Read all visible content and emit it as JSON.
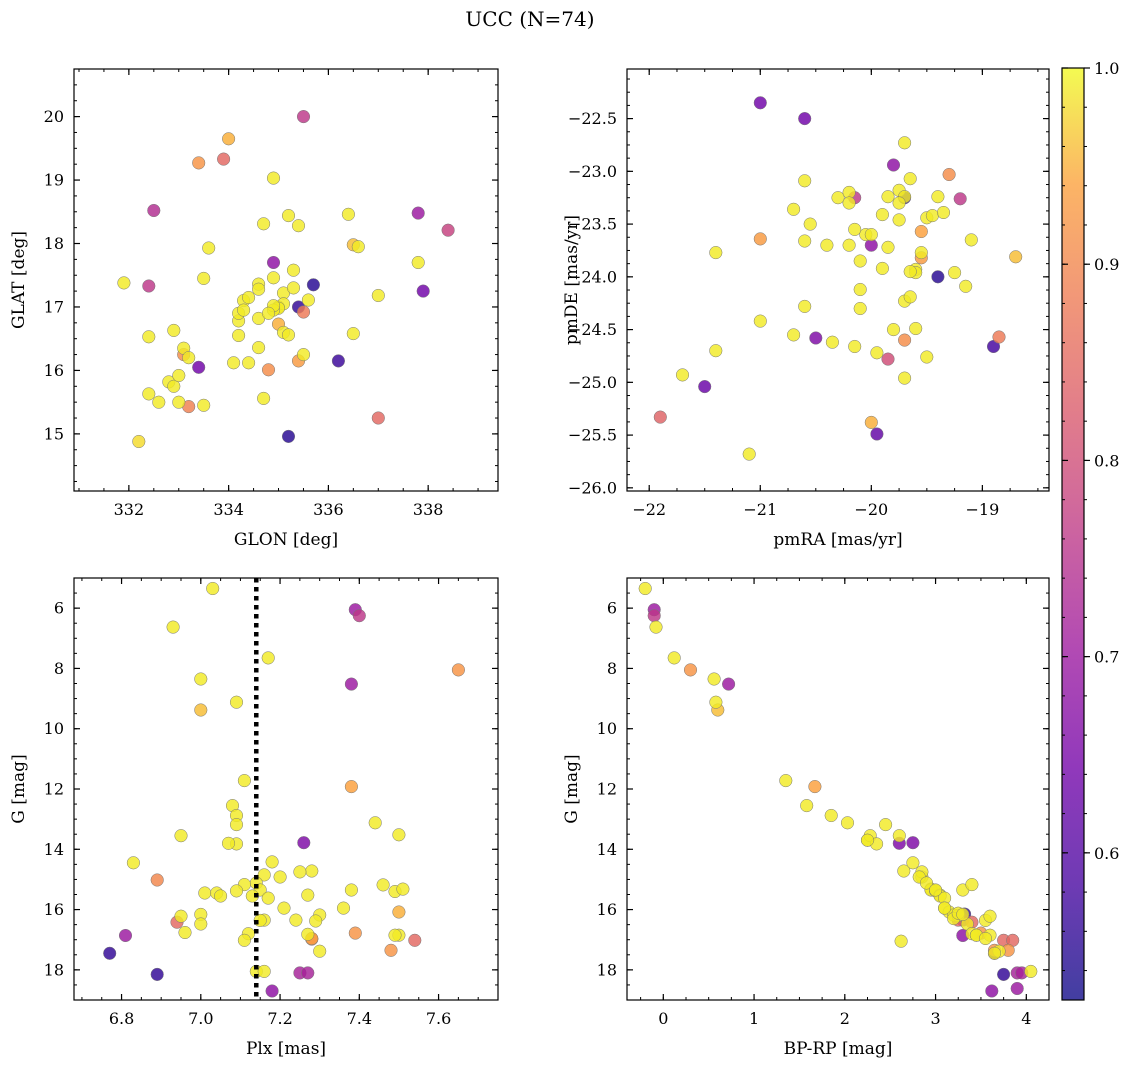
{
  "suptitle": "UCC (N=74)",
  "colorbar": {
    "min": 0.525,
    "max": 1.0,
    "cmap": "plasma",
    "ticks": [
      0.6,
      0.7,
      0.8,
      0.9,
      1.0
    ],
    "tick_labels": [
      "0.6",
      "0.7",
      "0.8",
      "0.9",
      "1.0"
    ]
  },
  "chart_data": [
    {
      "type": "scatter",
      "id": "glon_glat",
      "xlabel": "GLON [deg]",
      "ylabel": "GLAT [deg]",
      "xlim": [
        330.9,
        339.4
      ],
      "ylim": [
        14.1,
        20.75
      ],
      "xticks": [
        332,
        334,
        336,
        338
      ],
      "xtick_labels": [
        "332",
        "334",
        "336",
        "338"
      ],
      "yticks": [
        15,
        16,
        17,
        18,
        19,
        20
      ],
      "ytick_labels": [
        "15",
        "16",
        "17",
        "18",
        "19",
        "20"
      ],
      "x": [
        331.9,
        332.5,
        332.4,
        332.4,
        332.4,
        332.6,
        332.2,
        332.9,
        333.1,
        333.1,
        332.8,
        332.9,
        333.0,
        333.2,
        333.0,
        333.4,
        333.5,
        333.4,
        333.6,
        333.9,
        334.0,
        334.1,
        334.2,
        334.3,
        334.2,
        334.2,
        334.4,
        334.4,
        334.6,
        334.6,
        334.6,
        334.7,
        334.8,
        334.7,
        334.9,
        334.9,
        334.9,
        335.0,
        335.1,
        335.1,
        335.1,
        335.2,
        335.2,
        335.0,
        335.3,
        335.3,
        335.4,
        335.4,
        335.5,
        335.5,
        335.5,
        335.7,
        335.6,
        335.2,
        335.0,
        334.9,
        334.9,
        334.8,
        334.6,
        336.2,
        336.4,
        336.5,
        336.5,
        336.6,
        337.0,
        337.0,
        337.8,
        337.8,
        337.9,
        338.4,
        335.4,
        334.3,
        333.5,
        333.2
      ],
      "y": [
        17.38,
        18.52,
        17.33,
        16.53,
        15.63,
        15.5,
        14.88,
        16.63,
        16.35,
        16.25,
        15.82,
        15.75,
        15.5,
        15.43,
        15.92,
        16.05,
        15.45,
        19.27,
        17.93,
        19.33,
        19.65,
        16.12,
        16.55,
        17.1,
        16.78,
        16.9,
        17.15,
        16.12,
        17.36,
        17.28,
        16.82,
        18.31,
        16.01,
        15.56,
        19.03,
        17.7,
        17.46,
        17.0,
        17.22,
        17.05,
        16.6,
        16.56,
        18.44,
        16.73,
        17.58,
        17.3,
        18.28,
        16.15,
        16.25,
        20.0,
        16.92,
        17.35,
        17.11,
        14.96,
        16.98,
        16.95,
        17.02,
        16.9,
        16.36,
        16.15,
        18.46,
        17.98,
        16.58,
        17.95,
        17.18,
        15.25,
        18.48,
        17.7,
        17.25,
        18.21,
        17.0,
        16.95,
        17.45,
        16.2
      ],
      "prob": [
        0.99,
        0.74,
        0.76,
        0.99,
        0.99,
        0.99,
        0.98,
        0.99,
        0.99,
        0.91,
        0.99,
        0.99,
        0.99,
        0.89,
        0.99,
        0.64,
        0.99,
        0.92,
        0.99,
        0.85,
        0.95,
        0.99,
        0.99,
        0.99,
        0.99,
        0.99,
        0.99,
        0.99,
        0.99,
        0.99,
        0.99,
        0.99,
        0.91,
        0.99,
        0.99,
        0.68,
        0.99,
        0.99,
        0.99,
        0.99,
        0.99,
        0.99,
        0.99,
        0.95,
        0.99,
        0.99,
        0.99,
        0.93,
        0.99,
        0.76,
        0.88,
        0.55,
        0.99,
        0.55,
        0.99,
        0.99,
        0.99,
        0.99,
        0.99,
        0.57,
        0.99,
        0.96,
        0.99,
        0.99,
        0.99,
        0.85,
        0.7,
        0.99,
        0.64,
        0.78,
        0.56,
        0.99,
        0.99,
        0.99
      ]
    },
    {
      "type": "scatter",
      "id": "pm",
      "xlabel": "pmRA [mas/yr]",
      "ylabel": "pmDE [mas/yr]",
      "xlim": [
        -22.2,
        -18.4
      ],
      "ylim": [
        -26.03,
        -22.03
      ],
      "xticks": [
        -22,
        -21,
        -20,
        -19
      ],
      "xtick_labels": [
        "−22",
        "−21",
        "−20",
        "−19"
      ],
      "yticks": [
        -26.0,
        -25.5,
        -25.0,
        -24.5,
        -24.0,
        -23.5,
        -23.0,
        -22.5
      ],
      "ytick_labels": [
        "−26.0",
        "−25.5",
        "−25.0",
        "−24.5",
        "−24.0",
        "−23.5",
        "−23.0",
        "−22.5"
      ],
      "x": [
        -21.0,
        -20.6,
        -21.9,
        -21.7,
        -21.5,
        -21.4,
        -21.4,
        -21.1,
        -21.0,
        -20.7,
        -20.6,
        -20.7,
        -20.6,
        -20.6,
        -20.55,
        -20.5,
        -20.4,
        -20.35,
        -20.3,
        -20.2,
        -20.2,
        -20.15,
        -20.15,
        -20.1,
        -20.1,
        -20.1,
        -20.05,
        -20.0,
        -20.0,
        -19.95,
        -19.9,
        -19.9,
        -19.85,
        -19.85,
        -19.8,
        -19.8,
        -19.75,
        -19.75,
        -19.7,
        -19.7,
        -19.7,
        -19.7,
        -19.7,
        -19.65,
        -19.65,
        -19.6,
        -19.6,
        -19.6,
        -19.55,
        -19.55,
        -19.55,
        -19.5,
        -19.5,
        -19.45,
        -19.4,
        -19.4,
        -19.35,
        -19.3,
        -19.25,
        -19.2,
        -19.15,
        -19.1,
        -18.9,
        -18.85,
        -18.7,
        -19.7,
        -21.0,
        -20.15,
        -19.65,
        -19.85,
        -20.0,
        -19.95,
        -19.75,
        -20.2
      ],
      "y": [
        -22.35,
        -22.5,
        -25.33,
        -24.93,
        -25.04,
        -24.7,
        -23.77,
        -25.68,
        -24.42,
        -23.36,
        -23.09,
        -24.55,
        -24.28,
        -23.66,
        -23.5,
        -24.58,
        -23.7,
        -24.62,
        -23.25,
        -23.2,
        -23.7,
        -24.66,
        -23.25,
        -23.85,
        -24.12,
        -24.3,
        -23.6,
        -25.38,
        -23.7,
        -25.49,
        -23.92,
        -23.41,
        -23.24,
        -24.78,
        -24.5,
        -22.94,
        -23.46,
        -23.18,
        -22.73,
        -24.23,
        -24.6,
        -24.96,
        -23.24,
        -24.19,
        -23.07,
        -23.93,
        -23.96,
        -24.49,
        -23.57,
        -23.82,
        -23.77,
        -23.44,
        -24.76,
        -23.42,
        -23.24,
        -24.0,
        -23.39,
        -23.03,
        -23.96,
        -23.26,
        -24.09,
        -23.65,
        -24.66,
        -24.57,
        -23.81,
        -23.25,
        -23.64,
        -23.55,
        -23.95,
        -23.72,
        -23.6,
        -24.72,
        -23.3,
        -23.3
      ],
      "prob": [
        0.64,
        0.64,
        0.84,
        0.99,
        0.63,
        0.99,
        0.99,
        0.99,
        0.99,
        0.99,
        0.99,
        0.99,
        0.99,
        0.99,
        0.99,
        0.66,
        0.99,
        0.99,
        0.99,
        0.99,
        0.99,
        0.99,
        0.76,
        0.99,
        0.99,
        0.99,
        0.99,
        0.95,
        0.68,
        0.62,
        0.99,
        0.99,
        0.99,
        0.8,
        0.99,
        0.68,
        0.99,
        0.99,
        0.99,
        0.99,
        0.91,
        0.99,
        0.99,
        0.99,
        0.99,
        0.99,
        0.99,
        0.99,
        0.94,
        0.93,
        0.99,
        0.99,
        0.99,
        0.99,
        0.99,
        0.55,
        0.99,
        0.91,
        0.99,
        0.76,
        0.99,
        0.99,
        0.58,
        0.88,
        0.96,
        0.56,
        0.93,
        0.99,
        0.99,
        0.99,
        0.99,
        0.99,
        0.99,
        0.99
      ]
    },
    {
      "type": "scatter",
      "id": "plx_g",
      "xlabel": "Plx [mas]",
      "ylabel": "G [mag]",
      "xlim": [
        6.68,
        7.75
      ],
      "ylim": [
        19.0,
        5.0
      ],
      "y_inverted": true,
      "vline_x": 7.14,
      "xticks": [
        6.8,
        7.0,
        7.2,
        7.4,
        7.6
      ],
      "xtick_labels": [
        "6.8",
        "7.0",
        "7.2",
        "7.4",
        "7.6"
      ],
      "yticks": [
        6,
        8,
        10,
        12,
        14,
        16,
        18
      ],
      "ytick_labels": [
        "6",
        "8",
        "10",
        "12",
        "14",
        "16",
        "18"
      ],
      "x": [
        7.03,
        6.93,
        7.17,
        7.0,
        7.0,
        7.09,
        7.11,
        7.08,
        7.09,
        7.09,
        7.09,
        6.95,
        7.26,
        7.38,
        7.44,
        7.5,
        7.07,
        6.83,
        7.18,
        7.2,
        7.16,
        7.14,
        7.11,
        7.15,
        7.13,
        7.17,
        7.16,
        7.15,
        7.21,
        7.24,
        7.27,
        7.28,
        7.28,
        7.25,
        7.3,
        7.3,
        7.25,
        7.27,
        7.29,
        7.39,
        7.36,
        7.38,
        7.46,
        7.49,
        7.5,
        7.51,
        7.5,
        7.48,
        7.49,
        7.54,
        7.65,
        7.39,
        7.4,
        7.38,
        7.27,
        7.28,
        6.77,
        6.81,
        6.89,
        6.89,
        6.94,
        6.95,
        6.96,
        7.0,
        7.0,
        7.01,
        7.04,
        7.05,
        7.09,
        7.12,
        7.11,
        7.14,
        7.18,
        7.16
      ],
      "y": [
        5.35,
        6.63,
        7.65,
        8.35,
        9.38,
        9.12,
        11.72,
        12.55,
        12.88,
        13.18,
        13.82,
        13.55,
        13.78,
        11.92,
        13.12,
        13.52,
        13.8,
        14.45,
        14.42,
        14.92,
        14.85,
        15.12,
        15.17,
        15.35,
        15.55,
        15.62,
        16.35,
        16.36,
        15.95,
        16.35,
        15.52,
        14.72,
        16.96,
        14.75,
        16.18,
        17.38,
        18.1,
        16.82,
        16.38,
        16.78,
        15.95,
        15.35,
        15.18,
        15.4,
        16.85,
        15.32,
        16.08,
        17.35,
        16.85,
        17.02,
        8.05,
        6.05,
        6.25,
        8.52,
        18.1,
        16.98,
        17.45,
        16.86,
        18.15,
        15.02,
        16.42,
        16.22,
        16.76,
        16.16,
        16.48,
        15.45,
        15.45,
        15.55,
        15.38,
        16.8,
        17.02,
        18.05,
        18.7,
        18.05
      ],
      "prob": [
        0.99,
        0.99,
        0.99,
        0.99,
        0.96,
        0.99,
        0.99,
        0.99,
        0.99,
        0.99,
        0.99,
        0.99,
        0.66,
        0.94,
        0.99,
        0.99,
        0.99,
        0.99,
        0.99,
        0.99,
        0.99,
        0.99,
        0.99,
        0.99,
        0.99,
        0.99,
        0.99,
        0.99,
        0.99,
        0.99,
        0.99,
        0.99,
        0.93,
        0.99,
        0.99,
        0.99,
        0.72,
        0.99,
        0.99,
        0.92,
        0.99,
        0.99,
        0.99,
        0.99,
        0.99,
        0.99,
        0.95,
        0.92,
        0.99,
        0.85,
        0.92,
        0.7,
        0.76,
        0.7,
        0.72,
        0.92,
        0.56,
        0.7,
        0.56,
        0.9,
        0.85,
        0.99,
        0.99,
        0.99,
        0.99,
        0.99,
        0.99,
        0.99,
        0.99,
        0.99,
        0.99,
        0.99,
        0.68,
        0.99
      ]
    },
    {
      "type": "scatter",
      "id": "cmd",
      "xlabel": "BP-RP [mag]",
      "ylabel": "G [mag]",
      "xlim": [
        -0.4,
        4.25
      ],
      "ylim": [
        19.0,
        5.0
      ],
      "y_inverted": true,
      "xticks": [
        0,
        1,
        2,
        3,
        4
      ],
      "xtick_labels": [
        "0",
        "1",
        "2",
        "3",
        "4"
      ],
      "yticks": [
        6,
        8,
        10,
        12,
        14,
        16,
        18
      ],
      "ytick_labels": [
        "6",
        "8",
        "10",
        "12",
        "14",
        "16",
        "18"
      ],
      "x": [
        -0.2,
        -0.1,
        -0.1,
        -0.08,
        0.12,
        0.3,
        0.56,
        0.58,
        0.6,
        0.72,
        1.35,
        1.67,
        1.58,
        1.85,
        2.03,
        2.25,
        2.28,
        2.35,
        2.45,
        2.6,
        2.6,
        2.75,
        2.65,
        2.75,
        2.85,
        2.85,
        2.95,
        2.95,
        3.0,
        3.05,
        3.05,
        3.1,
        3.1,
        3.15,
        3.2,
        3.25,
        3.25,
        3.3,
        3.3,
        3.35,
        3.4,
        3.4,
        3.45,
        3.5,
        3.55,
        3.6,
        3.6,
        3.65,
        3.65,
        3.7,
        3.75,
        3.8,
        3.85,
        3.9,
        3.95,
        4.05,
        2.62,
        3.32,
        3.75,
        3.62,
        3.9,
        2.25,
        2.82,
        2.9,
        3.0,
        3.1,
        3.2,
        3.25,
        3.3,
        3.45,
        3.55,
        3.65,
        3.3,
        3.4
      ],
      "y": [
        5.35,
        6.05,
        6.25,
        6.63,
        7.65,
        8.05,
        8.35,
        9.12,
        9.38,
        8.52,
        11.72,
        11.92,
        12.55,
        12.88,
        13.12,
        13.7,
        13.55,
        13.82,
        13.18,
        13.55,
        13.8,
        13.78,
        14.72,
        14.45,
        14.92,
        14.75,
        15.32,
        15.35,
        15.38,
        15.52,
        15.55,
        15.62,
        15.95,
        16.08,
        16.18,
        16.35,
        16.2,
        16.35,
        16.86,
        16.48,
        16.42,
        16.8,
        16.85,
        16.78,
        16.36,
        16.22,
        16.85,
        17.45,
        17.35,
        17.38,
        17.02,
        17.35,
        17.02,
        18.1,
        18.1,
        18.05,
        17.05,
        16.15,
        18.15,
        18.7,
        18.62,
        13.7,
        14.92,
        15.12,
        15.35,
        15.95,
        16.3,
        16.12,
        16.16,
        16.85,
        16.96,
        17.45,
        15.35,
        15.17
      ],
      "prob": [
        0.99,
        0.7,
        0.76,
        0.99,
        0.99,
        0.92,
        0.99,
        0.99,
        0.96,
        0.7,
        0.99,
        0.94,
        0.99,
        0.99,
        0.99,
        0.99,
        0.99,
        0.99,
        0.99,
        0.99,
        0.66,
        0.66,
        0.99,
        0.99,
        0.99,
        0.99,
        0.99,
        0.99,
        0.99,
        0.99,
        0.99,
        0.99,
        0.99,
        0.99,
        0.99,
        0.85,
        0.99,
        0.72,
        0.68,
        0.99,
        0.85,
        0.99,
        0.99,
        0.92,
        0.99,
        0.99,
        0.99,
        0.56,
        0.92,
        0.99,
        0.85,
        0.92,
        0.85,
        0.72,
        0.72,
        0.99,
        0.99,
        0.56,
        0.56,
        0.68,
        0.7,
        0.99,
        0.99,
        0.99,
        0.99,
        0.99,
        0.99,
        0.99,
        0.99,
        0.99,
        0.99,
        0.99,
        0.99,
        0.99
      ]
    }
  ]
}
